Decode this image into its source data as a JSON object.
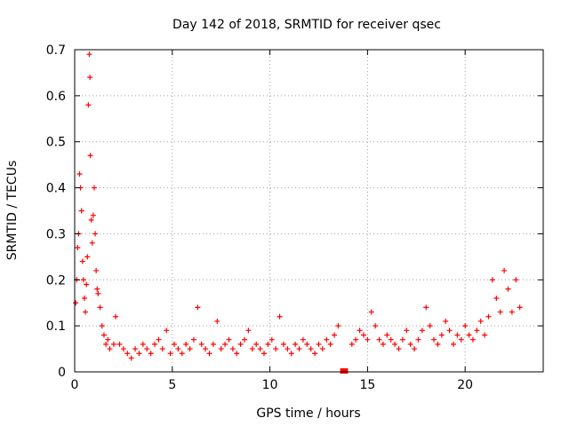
{
  "chart_data": {
    "type": "scatter",
    "title": "Day 142 of 2018, SRMTID for receiver qsec",
    "xlabel": "GPS time / hours",
    "ylabel": "SRMTID / TECUs",
    "xlim": [
      0,
      24
    ],
    "ylim": [
      0,
      0.7
    ],
    "x_ticks": [
      0,
      5,
      10,
      15,
      20
    ],
    "x_tick_labels": [
      "0",
      "5",
      "10",
      "15",
      "20"
    ],
    "y_ticks": [
      0,
      0.1,
      0.2,
      0.3,
      0.4,
      0.5,
      0.6,
      0.7
    ],
    "y_tick_labels": [
      "0",
      "0.1",
      "0.2",
      "0.3",
      "0.4",
      "0.5",
      "0.6",
      "0.7"
    ],
    "grid": true,
    "marker": "plus",
    "color": "#ff0000",
    "data_gap_hours": [
      13.6,
      14.0
    ],
    "series": [
      {
        "name": "SRMTID",
        "points": [
          [
            0.05,
            0.15
          ],
          [
            0.1,
            0.2
          ],
          [
            0.15,
            0.27
          ],
          [
            0.2,
            0.3
          ],
          [
            0.25,
            0.43
          ],
          [
            0.3,
            0.4
          ],
          [
            0.35,
            0.35
          ],
          [
            0.4,
            0.24
          ],
          [
            0.45,
            0.2
          ],
          [
            0.5,
            0.16
          ],
          [
            0.55,
            0.13
          ],
          [
            0.6,
            0.19
          ],
          [
            0.65,
            0.25
          ],
          [
            0.7,
            0.58
          ],
          [
            0.75,
            0.69
          ],
          [
            0.78,
            0.64
          ],
          [
            0.8,
            0.47
          ],
          [
            0.85,
            0.33
          ],
          [
            0.9,
            0.28
          ],
          [
            0.95,
            0.34
          ],
          [
            1.0,
            0.4
          ],
          [
            1.05,
            0.3
          ],
          [
            1.1,
            0.22
          ],
          [
            1.15,
            0.18
          ],
          [
            1.2,
            0.17
          ],
          [
            1.3,
            0.14
          ],
          [
            1.4,
            0.1
          ],
          [
            1.5,
            0.08
          ],
          [
            1.6,
            0.06
          ],
          [
            1.7,
            0.07
          ],
          [
            1.8,
            0.05
          ],
          [
            2.0,
            0.06
          ],
          [
            2.1,
            0.12
          ],
          [
            2.3,
            0.06
          ],
          [
            2.5,
            0.05
          ],
          [
            2.7,
            0.04
          ],
          [
            2.9,
            0.03
          ],
          [
            3.1,
            0.05
          ],
          [
            3.3,
            0.04
          ],
          [
            3.5,
            0.06
          ],
          [
            3.7,
            0.05
          ],
          [
            3.9,
            0.04
          ],
          [
            4.1,
            0.06
          ],
          [
            4.3,
            0.07
          ],
          [
            4.5,
            0.05
          ],
          [
            4.7,
            0.09
          ],
          [
            4.9,
            0.04
          ],
          [
            5.1,
            0.06
          ],
          [
            5.3,
            0.05
          ],
          [
            5.5,
            0.04
          ],
          [
            5.7,
            0.06
          ],
          [
            5.9,
            0.05
          ],
          [
            6.1,
            0.07
          ],
          [
            6.3,
            0.14
          ],
          [
            6.5,
            0.06
          ],
          [
            6.7,
            0.05
          ],
          [
            6.9,
            0.04
          ],
          [
            7.1,
            0.06
          ],
          [
            7.3,
            0.11
          ],
          [
            7.5,
            0.05
          ],
          [
            7.7,
            0.06
          ],
          [
            7.9,
            0.07
          ],
          [
            8.1,
            0.05
          ],
          [
            8.3,
            0.04
          ],
          [
            8.5,
            0.06
          ],
          [
            8.7,
            0.07
          ],
          [
            8.9,
            0.09
          ],
          [
            9.1,
            0.05
          ],
          [
            9.3,
            0.06
          ],
          [
            9.5,
            0.05
          ],
          [
            9.7,
            0.04
          ],
          [
            9.9,
            0.06
          ],
          [
            10.1,
            0.07
          ],
          [
            10.3,
            0.05
          ],
          [
            10.5,
            0.12
          ],
          [
            10.7,
            0.06
          ],
          [
            10.9,
            0.05
          ],
          [
            11.1,
            0.04
          ],
          [
            11.3,
            0.06
          ],
          [
            11.5,
            0.05
          ],
          [
            11.7,
            0.07
          ],
          [
            11.9,
            0.06
          ],
          [
            12.1,
            0.05
          ],
          [
            12.3,
            0.04
          ],
          [
            12.5,
            0.06
          ],
          [
            12.7,
            0.05
          ],
          [
            12.9,
            0.07
          ],
          [
            13.1,
            0.06
          ],
          [
            13.3,
            0.08
          ],
          [
            13.5,
            0.1
          ],
          [
            14.2,
            0.06
          ],
          [
            14.4,
            0.07
          ],
          [
            14.6,
            0.09
          ],
          [
            14.8,
            0.08
          ],
          [
            15.0,
            0.07
          ],
          [
            15.2,
            0.13
          ],
          [
            15.4,
            0.1
          ],
          [
            15.6,
            0.07
          ],
          [
            15.8,
            0.06
          ],
          [
            16.0,
            0.08
          ],
          [
            16.2,
            0.07
          ],
          [
            16.4,
            0.06
          ],
          [
            16.6,
            0.05
          ],
          [
            16.8,
            0.07
          ],
          [
            17.0,
            0.09
          ],
          [
            17.2,
            0.06
          ],
          [
            17.4,
            0.05
          ],
          [
            17.6,
            0.07
          ],
          [
            17.8,
            0.09
          ],
          [
            18.0,
            0.14
          ],
          [
            18.2,
            0.1
          ],
          [
            18.4,
            0.07
          ],
          [
            18.6,
            0.06
          ],
          [
            18.8,
            0.08
          ],
          [
            19.0,
            0.11
          ],
          [
            19.2,
            0.09
          ],
          [
            19.4,
            0.06
          ],
          [
            19.6,
            0.08
          ],
          [
            19.8,
            0.07
          ],
          [
            20.0,
            0.1
          ],
          [
            20.2,
            0.08
          ],
          [
            20.4,
            0.07
          ],
          [
            20.6,
            0.09
          ],
          [
            20.8,
            0.11
          ],
          [
            21.0,
            0.08
          ],
          [
            21.2,
            0.12
          ],
          [
            21.4,
            0.2
          ],
          [
            21.6,
            0.16
          ],
          [
            21.8,
            0.13
          ],
          [
            22.0,
            0.22
          ],
          [
            22.2,
            0.18
          ],
          [
            22.4,
            0.13
          ],
          [
            22.6,
            0.2
          ],
          [
            22.8,
            0.14
          ]
        ]
      }
    ]
  }
}
